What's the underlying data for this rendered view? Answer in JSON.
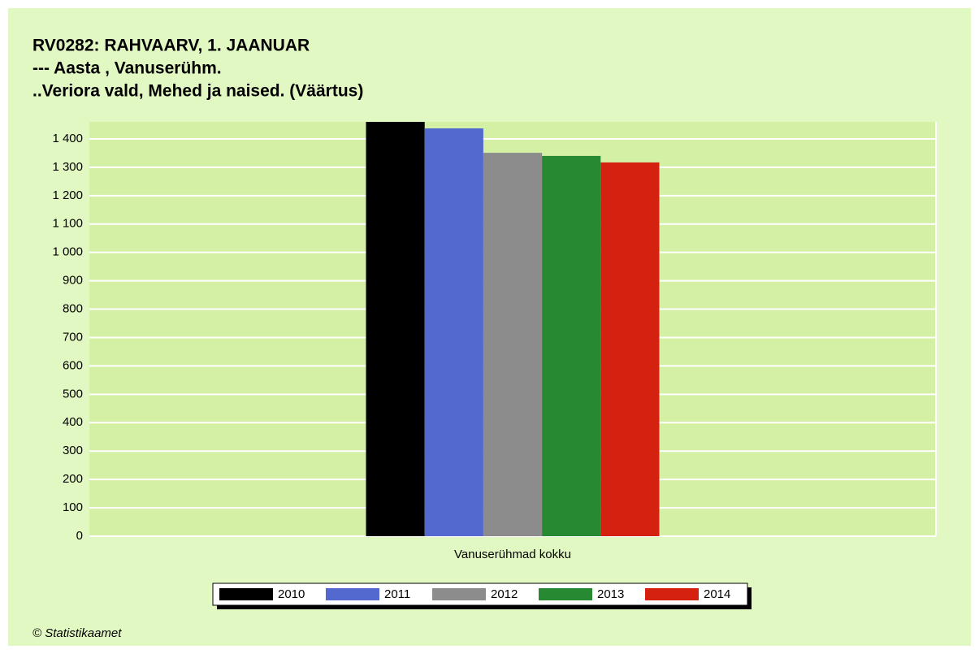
{
  "chart_data": {
    "type": "bar",
    "title": [
      "RV0282: RAHVAARV, 1. JAANUAR",
      "--- Aasta , Vanuserühm.",
      "..Veriora vald, Mehed ja naised. (Väärtus)"
    ],
    "categories": [
      "Vanuserühmad kokku"
    ],
    "series": [
      {
        "name": "2010",
        "color": "#000000",
        "values": [
          1460
        ]
      },
      {
        "name": "2011",
        "color": "#5469cf",
        "values": [
          1437
        ]
      },
      {
        "name": "2012",
        "color": "#8c8c8c",
        "values": [
          1351
        ]
      },
      {
        "name": "2013",
        "color": "#278a32",
        "values": [
          1340
        ]
      },
      {
        "name": "2014",
        "color": "#d52110",
        "values": [
          1317
        ]
      }
    ],
    "ylim": [
      0,
      1460
    ],
    "yticks": [
      0,
      100,
      200,
      300,
      400,
      500,
      600,
      700,
      800,
      900,
      {
        "value": 1000,
        "label": "1 000"
      },
      {
        "value": 1100,
        "label": "1 100"
      },
      {
        "value": 1200,
        "label": "1 200"
      },
      {
        "value": 1300,
        "label": "1 300"
      },
      {
        "value": 1400,
        "label": "1 400"
      }
    ],
    "grid": true,
    "legend": "bottom",
    "footer": "© Statistikaamet"
  }
}
